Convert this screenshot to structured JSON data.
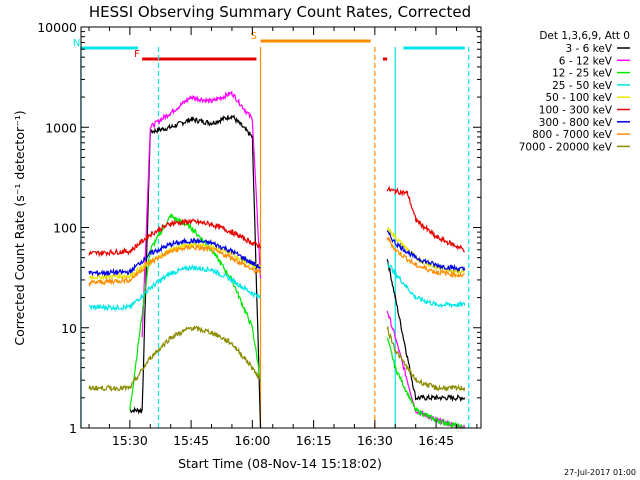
{
  "chart_data": {
    "type": "line",
    "title": "HESSI Observing Summary Count Rates, Corrected",
    "xlabel": "Start Time (08-Nov-14 15:18:02)",
    "ylabel": "Corrected Count Rate (s⁻¹ detector⁻¹)",
    "yscale": "log",
    "ylim": [
      1,
      10000
    ],
    "xlim": [
      "15:18:02",
      "16:56:00"
    ],
    "xtick_labels": [
      "15:30",
      "15:45",
      "16:00",
      "16:15",
      "16:30",
      "16:45"
    ],
    "ytick_labels": [
      "1",
      "10",
      "100",
      "1000",
      "10000"
    ],
    "legend_title": "Det 1,3,6,9, Att 0",
    "legend_position": "right",
    "grid": false,
    "footer": "27-Jul-2017 01:00",
    "flags": [
      {
        "label": "N",
        "color": "#00e6e6",
        "segments": [
          [
            "15:18",
            "15:32"
          ],
          [
            "16:37",
            "16:52"
          ]
        ]
      },
      {
        "label": "F",
        "color": "#e60000",
        "segments": [
          [
            "15:33",
            "16:01"
          ],
          [
            "16:32",
            "16:33"
          ]
        ]
      },
      {
        "label": "S",
        "color": "#ff8c00",
        "segments": [
          [
            "16:02",
            "16:29"
          ]
        ]
      }
    ],
    "shaded_lines": [
      {
        "time": "15:18",
        "color": "#00e6e6",
        "style": "solid"
      },
      {
        "time": "15:37",
        "color": "#00e6e6",
        "style": "dashed"
      },
      {
        "time": "16:02",
        "color": "#ff8c00",
        "style": "solid"
      },
      {
        "time": "16:30",
        "color": "#ff8c00",
        "style": "dashed"
      },
      {
        "time": "16:35",
        "color": "#00e6e6",
        "style": "solid"
      },
      {
        "time": "16:53",
        "color": "#00e6e6",
        "style": "dashed"
      }
    ],
    "series": [
      {
        "name": "3 - 6 keV",
        "color": "#000000",
        "x": [
          "15:30",
          "15:33",
          "15:35",
          "15:40",
          "15:45",
          "15:50",
          "15:55",
          "16:00",
          "16:02",
          "16:33",
          "16:35",
          "16:40",
          "16:45",
          "16:52"
        ],
        "y": [
          1.5,
          1.5,
          900,
          1000,
          1200,
          1100,
          1300,
          800,
          1,
          50,
          20,
          2,
          2,
          2
        ]
      },
      {
        "name": "6 - 12 keV",
        "color": "#ff00ff",
        "x": [
          "15:33",
          "15:35",
          "15:40",
          "15:45",
          "15:50",
          "15:55",
          "16:00",
          "16:02",
          "16:33",
          "16:35",
          "16:40",
          "16:45",
          "16:52"
        ],
        "y": [
          8,
          1000,
          1400,
          2000,
          1800,
          2200,
          1200,
          30,
          15,
          8,
          1.5,
          1.2,
          1
        ]
      },
      {
        "name": "12 - 25 keV",
        "color": "#00e600",
        "x": [
          "15:30",
          "15:35",
          "15:40",
          "15:45",
          "15:50",
          "15:55",
          "16:00",
          "16:02",
          "16:33",
          "16:35",
          "16:40",
          "16:45",
          "16:52"
        ],
        "y": [
          1.5,
          60,
          130,
          100,
          60,
          30,
          10,
          3,
          8,
          4,
          1.5,
          1.2,
          1
        ]
      },
      {
        "name": "25 - 50 keV",
        "color": "#00e6e6",
        "x": [
          "15:20",
          "15:30",
          "15:35",
          "15:40",
          "15:45",
          "15:50",
          "15:55",
          "16:00",
          "16:02",
          "16:33",
          "16:35",
          "16:40",
          "16:45",
          "16:52"
        ],
        "y": [
          16,
          16,
          25,
          35,
          40,
          38,
          30,
          22,
          20,
          45,
          35,
          20,
          17,
          17
        ]
      },
      {
        "name": "50 - 100 keV",
        "color": "#e6e600",
        "x": [
          "15:20",
          "15:30",
          "15:35",
          "15:40",
          "15:45",
          "15:50",
          "15:55",
          "16:00",
          "16:02",
          "16:33",
          "16:35",
          "16:40",
          "16:45",
          "16:52"
        ],
        "y": [
          32,
          33,
          45,
          60,
          68,
          64,
          55,
          42,
          40,
          100,
          80,
          50,
          40,
          36
        ]
      },
      {
        "name": "100 - 300 keV",
        "color": "#e60000",
        "x": [
          "15:20",
          "15:30",
          "15:35",
          "15:40",
          "15:45",
          "15:50",
          "15:55",
          "16:00",
          "16:02",
          "16:33",
          "16:35",
          "16:38",
          "16:40",
          "16:45",
          "16:52"
        ],
        "y": [
          55,
          58,
          85,
          110,
          115,
          108,
          90,
          70,
          65,
          240,
          230,
          220,
          120,
          80,
          60
        ]
      },
      {
        "name": "300 - 800 keV",
        "color": "#0000e6",
        "x": [
          "15:20",
          "15:30",
          "15:35",
          "15:40",
          "15:45",
          "15:50",
          "15:55",
          "16:00",
          "16:02",
          "16:33",
          "16:35",
          "16:40",
          "16:45",
          "16:52"
        ],
        "y": [
          35,
          36,
          55,
          68,
          74,
          70,
          58,
          44,
          40,
          90,
          70,
          50,
          42,
          38
        ]
      },
      {
        "name": "800 - 7000 keV",
        "color": "#ff8c00",
        "x": [
          "15:20",
          "15:30",
          "15:35",
          "15:40",
          "15:45",
          "15:50",
          "15:55",
          "16:00",
          "16:02",
          "16:33",
          "16:35",
          "16:40",
          "16:45",
          "16:52"
        ],
        "y": [
          28,
          30,
          45,
          58,
          64,
          60,
          50,
          38,
          35,
          80,
          60,
          42,
          36,
          33
        ]
      },
      {
        "name": "7000 - 20000 keV",
        "color": "#8b8b00",
        "x": [
          "15:20",
          "15:30",
          "15:35",
          "15:40",
          "15:45",
          "15:50",
          "15:55",
          "16:00",
          "16:02",
          "16:33",
          "16:35",
          "16:40",
          "16:45",
          "16:52"
        ],
        "y": [
          2.5,
          2.5,
          5,
          8,
          10,
          9,
          7,
          4,
          3,
          10,
          6,
          3,
          2.5,
          2.5
        ]
      }
    ]
  }
}
